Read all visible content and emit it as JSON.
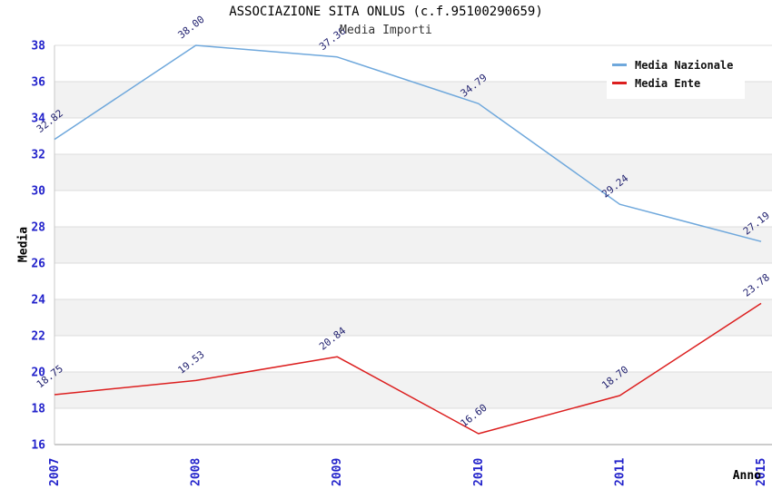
{
  "header": {
    "title": "ASSOCIAZIONE SITA ONLUS (c.f.95100290659)",
    "subtitle": "Media Importi"
  },
  "chart_data": {
    "type": "line",
    "title": "ASSOCIAZIONE SITA ONLUS (c.f.95100290659)",
    "subtitle": "Media Importi",
    "xlabel": "Anno",
    "ylabel": "Media",
    "categories": [
      "2007",
      "2008",
      "2009",
      "2010",
      "2011",
      "2015"
    ],
    "series": [
      {
        "name": "Media Nazionale",
        "color": "#6fa8dc",
        "values": [
          32.82,
          38.0,
          37.36,
          34.79,
          29.24,
          27.19
        ]
      },
      {
        "name": "Media Ente",
        "color": "#dc1f1f",
        "values": [
          18.75,
          19.53,
          20.84,
          16.6,
          18.7,
          23.78
        ]
      }
    ],
    "ylim": [
      16,
      38
    ],
    "ytick_step": 2,
    "yticks": [
      16,
      18,
      20,
      22,
      24,
      26,
      28,
      30,
      32,
      34,
      36,
      38
    ],
    "grid": true,
    "banded_background": true,
    "legend_position": "top-right",
    "point_label_format": "0.00",
    "x_tick_rotation": 90,
    "point_label_rotation": 38
  },
  "colors": {
    "band": "#f2f2f2",
    "gridline": "#dcdcdc",
    "axis_line": "#999999",
    "left_border": "#c8c8c8",
    "tick_label": "#2323cb",
    "point_label": "#1f1f6e",
    "series_nazionale": "#6fa8dc",
    "series_ente": "#dc1f1f"
  }
}
